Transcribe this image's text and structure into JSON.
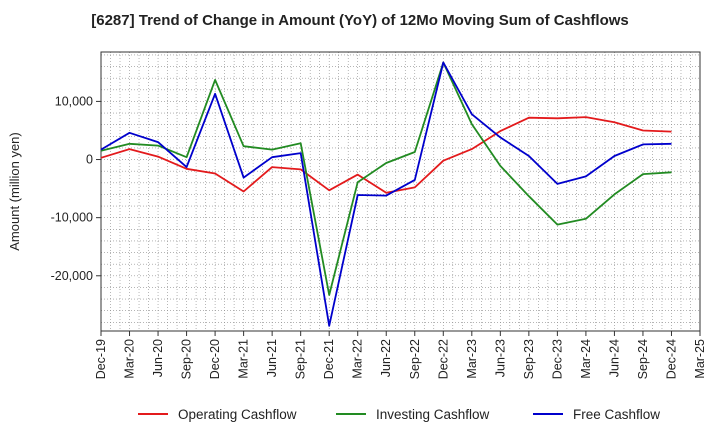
{
  "chart_data": {
    "type": "line",
    "title": "[6287]  Trend of Change in Amount (YoY) of 12Mo Moving Sum of Cashflows",
    "xlabel": "",
    "ylabel": "Amount (million yen)",
    "ylim": [
      -29500,
      18500
    ],
    "yticks": [
      10000,
      0,
      -10000,
      -20000
    ],
    "ytick_labels": [
      "10,000",
      "0",
      "-10,000",
      "-20,000"
    ],
    "grid": true,
    "legend_position": "bottom",
    "categories": [
      "Dec-19",
      "Mar-20",
      "Jun-20",
      "Sep-20",
      "Dec-20",
      "Mar-21",
      "Jun-21",
      "Sep-21",
      "Dec-21",
      "Mar-22",
      "Jun-22",
      "Sep-22",
      "Dec-22",
      "Mar-23",
      "Jun-23",
      "Sep-23",
      "Dec-23",
      "Mar-24",
      "Jun-24",
      "Sep-24",
      "Dec-24",
      "Mar-25"
    ],
    "series": [
      {
        "name": "Operating Cashflow",
        "color": "#e31a1c",
        "values": [
          300,
          1800,
          500,
          -1600,
          -2400,
          -5500,
          -1300,
          -1700,
          -5300,
          -2600,
          -5700,
          -4800,
          -200,
          1800,
          4900,
          7200,
          7100,
          7300,
          6400,
          5000,
          4800,
          null
        ]
      },
      {
        "name": "Investing Cashflow",
        "color": "#228b22",
        "values": [
          1500,
          2700,
          2400,
          400,
          13700,
          2300,
          1700,
          2800,
          -23300,
          -3900,
          -600,
          1300,
          16700,
          6100,
          -1100,
          -6300,
          -11200,
          -10200,
          -6000,
          -2500,
          -2200,
          null
        ]
      },
      {
        "name": "Free Cashflow",
        "color": "#0000cc",
        "values": [
          1700,
          4600,
          3000,
          -1300,
          11300,
          -3100,
          400,
          1100,
          -28600,
          -6100,
          -6200,
          -3500,
          16700,
          7800,
          3800,
          600,
          -4200,
          -2900,
          600,
          2600,
          2700,
          null
        ]
      }
    ]
  }
}
